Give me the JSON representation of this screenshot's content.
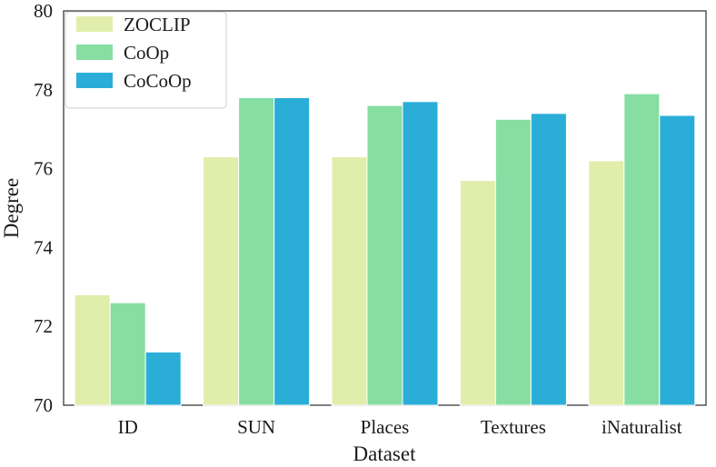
{
  "chart_data": {
    "type": "bar",
    "title": "",
    "xlabel": "Dataset",
    "ylabel": "Degree",
    "ylim": [
      70,
      80
    ],
    "yticks": [
      70,
      72,
      74,
      76,
      78,
      80
    ],
    "grid": false,
    "legend": "top-left",
    "categories": [
      "ID",
      "SUN",
      "Places",
      "Textures",
      "iNaturalist"
    ],
    "series": [
      {
        "name": "ZOCLIP",
        "color": "#e1edab",
        "values": [
          72.8,
          76.3,
          76.3,
          75.7,
          76.2
        ]
      },
      {
        "name": "CoOp",
        "color": "#86dea2",
        "values": [
          72.6,
          77.8,
          77.6,
          77.25,
          77.9
        ]
      },
      {
        "name": "CoCoOp",
        "color": "#2aaed8",
        "values": [
          71.35,
          77.8,
          77.7,
          77.4,
          77.35
        ]
      }
    ]
  }
}
